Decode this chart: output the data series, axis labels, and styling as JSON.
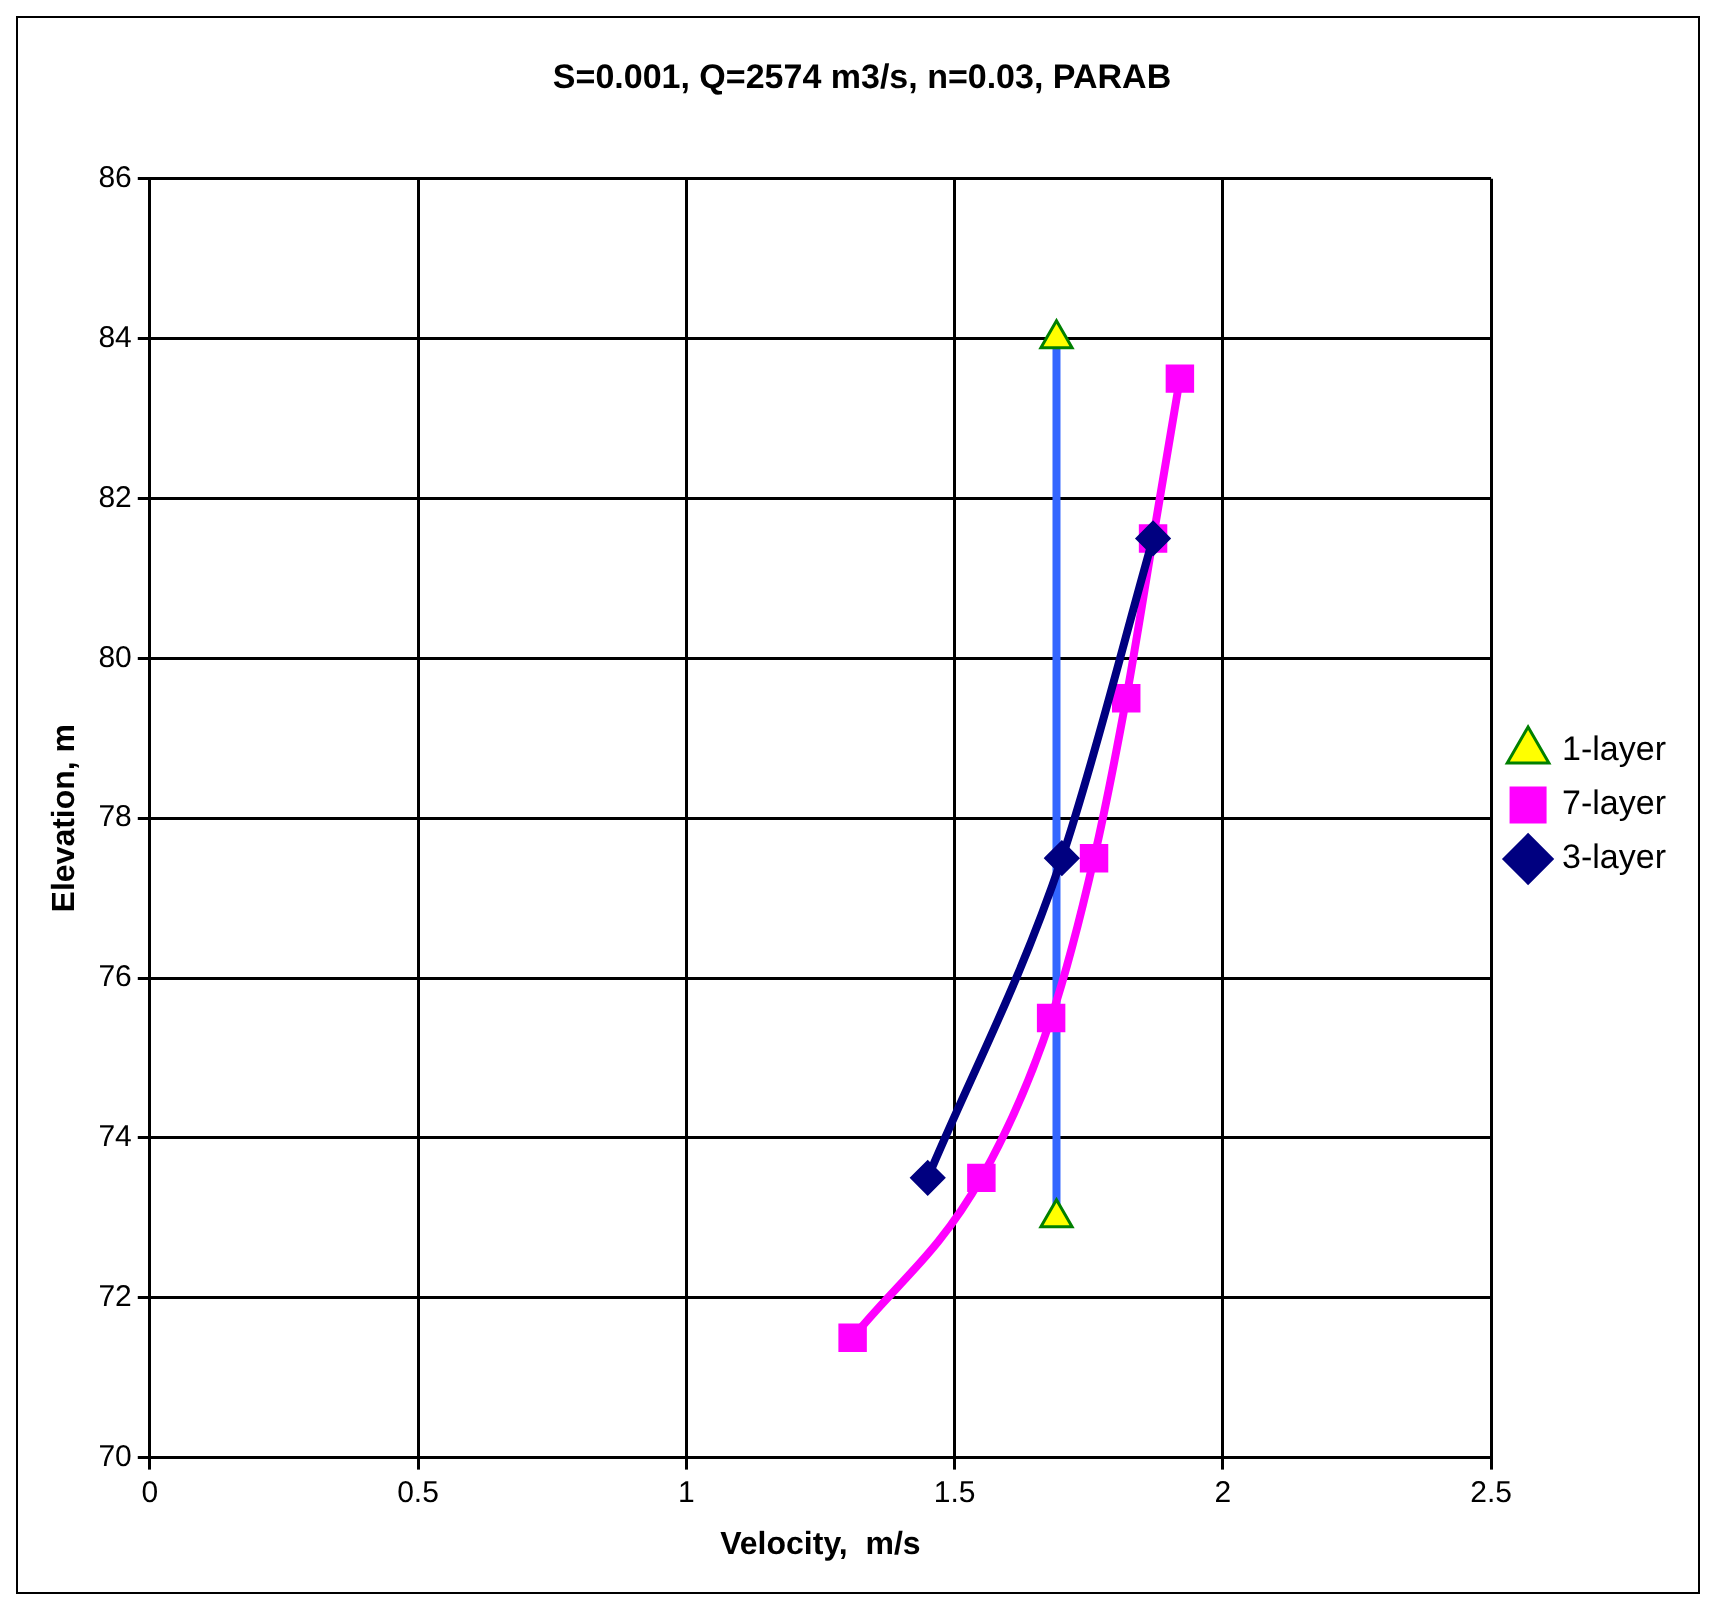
{
  "chart_data": {
    "type": "line",
    "title": "S=0.001, Q=2574 m3/s, n=0.03, PARAB",
    "xlabel": "Velocity,  m/s",
    "ylabel": "Elevation, m",
    "series": [
      {
        "name": "3-layer",
        "color": "#000080",
        "marker": "diamond",
        "x": [
          1.45,
          1.7,
          1.87
        ],
        "values": [
          73.5,
          77.5,
          81.5
        ]
      },
      {
        "name": "7-layer",
        "color": "#ff00ff",
        "marker": "square",
        "x": [
          1.31,
          1.55,
          1.68,
          1.76,
          1.82,
          1.87,
          1.92
        ],
        "values": [
          71.5,
          73.5,
          75.5,
          77.5,
          79.5,
          81.5,
          83.5
        ]
      },
      {
        "name": "1-layer",
        "color": "#3366ff",
        "marker": "triangle",
        "x": [
          1.69,
          1.69
        ],
        "values": [
          73,
          84
        ]
      }
    ],
    "xlim": [
      0,
      2.5
    ],
    "xticks": [
      0,
      0.5,
      1,
      1.5,
      2,
      2.5
    ],
    "ylim": [
      70,
      86
    ],
    "yticks": [
      70,
      72,
      74,
      76,
      78,
      80,
      82,
      84,
      86
    ],
    "grid": true,
    "legend": "right"
  }
}
